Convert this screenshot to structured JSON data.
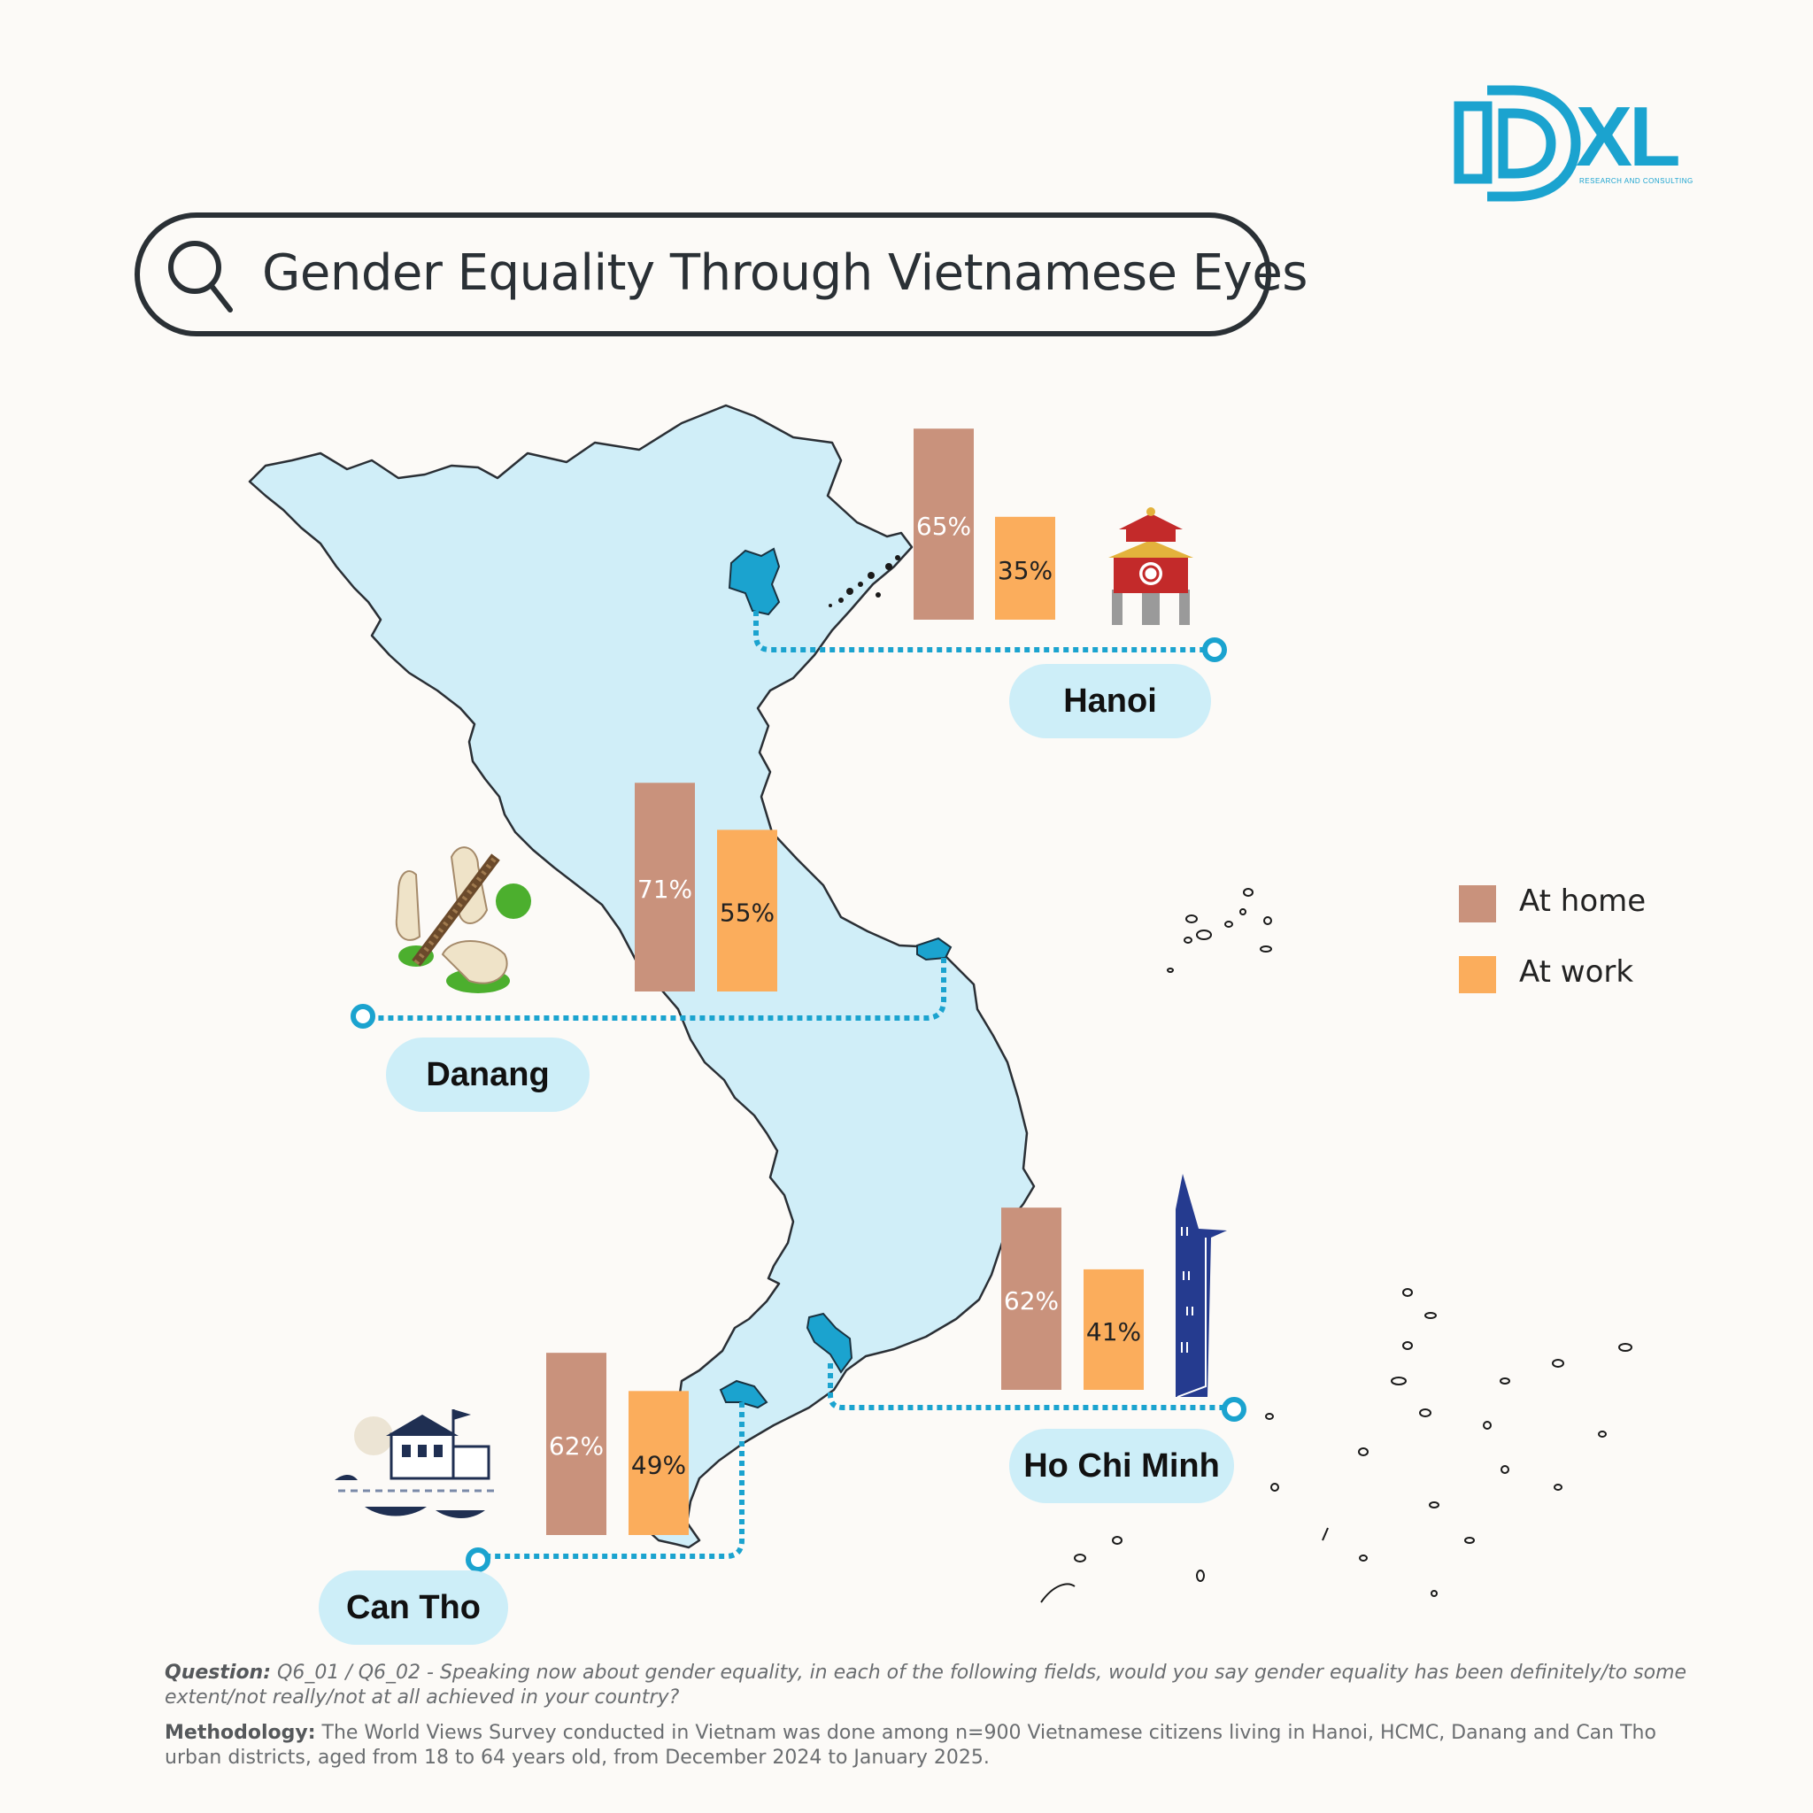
{
  "logo": {
    "text": "XL",
    "subtitle": "RESEARCH AND CONSULTING",
    "color": "#1ba3cf"
  },
  "search": {
    "title": "Gender Equality Through Vietnamese Eyes",
    "icon": "search-icon"
  },
  "legend": [
    {
      "label": "At home",
      "color": "#c9927c"
    },
    {
      "label": "At work",
      "color": "#fbad5c"
    }
  ],
  "cities": [
    {
      "name": "Hanoi",
      "icon": "temple-icon"
    },
    {
      "name": "Danang",
      "icon": "golden-bridge-hands-icon"
    },
    {
      "name": "Ho Chi Minh",
      "icon": "bitexco-tower-icon"
    },
    {
      "name": "Can Tho",
      "icon": "floating-market-icon"
    }
  ],
  "chart_data": {
    "type": "bar",
    "title": "Gender Equality Through Vietnamese Eyes",
    "categories": [
      "Hanoi",
      "Danang",
      "Ho Chi Minh",
      "Can Tho"
    ],
    "series": [
      {
        "name": "At home",
        "values": [
          65,
          71,
          62,
          62
        ],
        "labels": [
          "65%",
          "71%",
          "62%",
          "62%"
        ],
        "color": "#c9927c"
      },
      {
        "name": "At work",
        "values": [
          35,
          55,
          41,
          49
        ],
        "labels": [
          "35%",
          "55%",
          "41%",
          "49%"
        ],
        "color": "#fbad5c"
      }
    ],
    "ylim": [
      0,
      100
    ],
    "legend_position": "right"
  },
  "footer": {
    "question_label": "Question:",
    "question_text": "Q6_01 / Q6_02 - Speaking now about gender equality, in each of the following fields, would you say gender equality has been definitely/to some extent/not really/not at all achieved in your country?",
    "methodology_label": "Methodology:",
    "methodology_text": "The World Views Survey conducted in Vietnam was done among n=900 Vietnamese citizens living in Hanoi, HCMC, Danang and Can Tho urban districts, aged from 18 to 64 years old, from December 2024 to January 2025."
  }
}
